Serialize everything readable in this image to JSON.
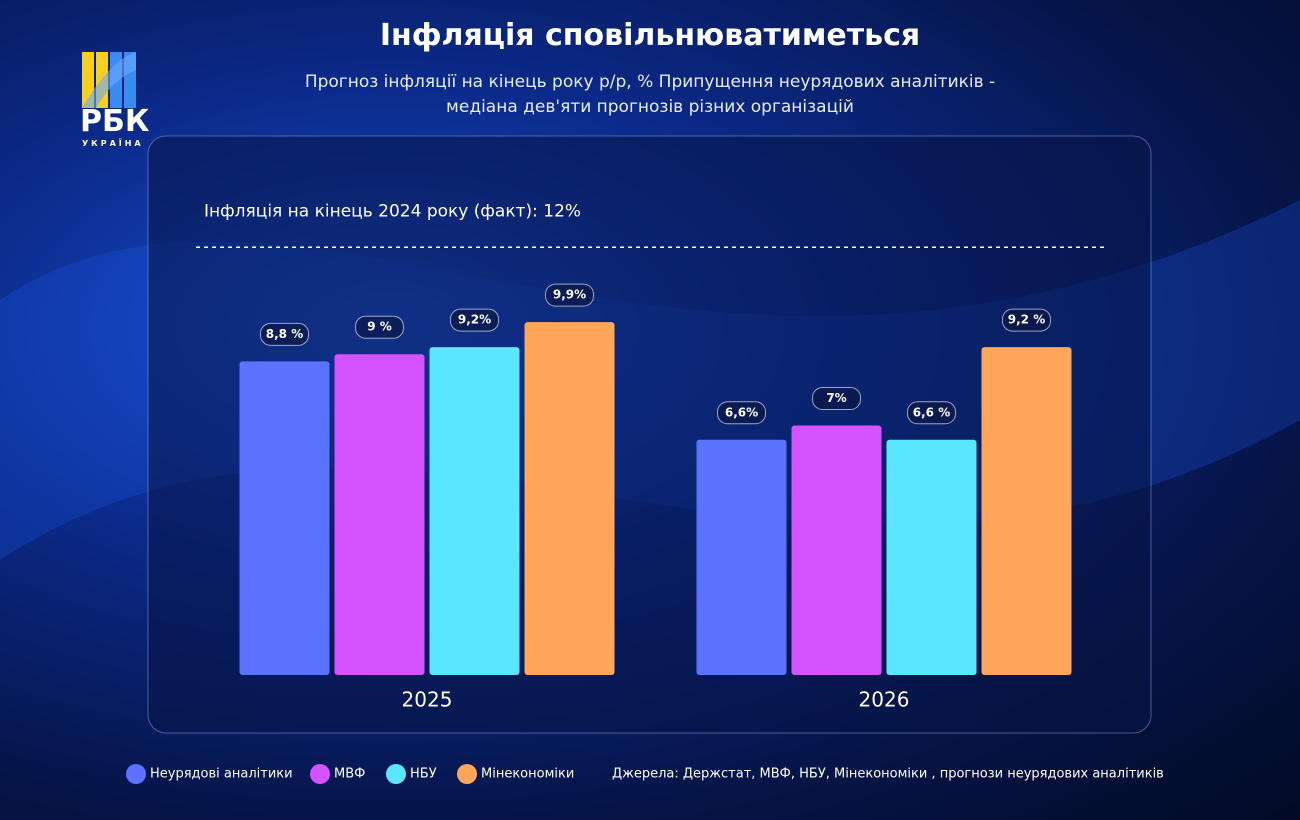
{
  "logo": {
    "name": "РБК",
    "subname": "УКРАЇНА"
  },
  "chart_data": {
    "type": "bar",
    "title": "Інфляція сповільнюватиметься",
    "subtitle": "Прогноз інфляції на кінець року р/р, % Припущення неурядових аналітиків - медіана дев'яти прогнозів різних організацій",
    "categories": [
      "2025",
      "2026"
    ],
    "series": [
      {
        "name": "Неурядові аналітики",
        "color": "#5b72ff",
        "values": [
          8.8,
          6.6
        ],
        "value_labels": [
          "8,8 %",
          "6,6%"
        ]
      },
      {
        "name": "МВФ",
        "color": "#d452ff",
        "values": [
          9,
          7
        ],
        "value_labels": [
          "9 %",
          "7%"
        ]
      },
      {
        "name": "НБУ",
        "color": "#5ae6ff",
        "values": [
          9.2,
          6.6
        ],
        "value_labels": [
          "9,2%",
          "6,6 %"
        ]
      },
      {
        "name": "Мінекономіки",
        "color": "#ffa65a",
        "values": [
          9.9,
          9.2
        ],
        "value_labels": [
          "9,9%",
          "9,2 %"
        ]
      }
    ],
    "ylim": [
      0,
      14
    ],
    "reference_line": {
      "value": 12,
      "label": "Інфляція на кінець 2024 року (факт): 12%"
    },
    "source": "Джерела: Держстат, МВФ, НБУ,  Мінекономіки , прогнози неурядових аналітиків"
  }
}
